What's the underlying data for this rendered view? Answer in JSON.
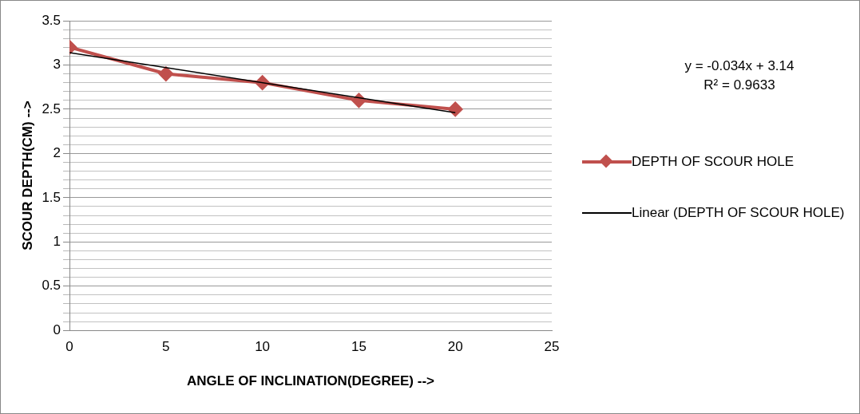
{
  "chart_data": {
    "type": "line",
    "xlabel": "ANGLE OF INCLINATION(DEGREE) -->",
    "ylabel": "SCOUR DEPTH(CM) -->",
    "series": [
      {
        "name": "DEPTH OF SCOUR HOLE",
        "color": "#c0504d",
        "x": [
          0,
          5,
          10,
          15,
          20
        ],
        "values": [
          3.2,
          2.9,
          2.8,
          2.6,
          2.5
        ],
        "marker": "diamond"
      },
      {
        "name": "Linear (DEPTH OF SCOUR HOLE)",
        "color": "#000000",
        "x": [
          0,
          20
        ],
        "values": [
          3.14,
          2.46
        ],
        "marker": "none"
      }
    ],
    "xlim": [
      0,
      25
    ],
    "xticks": [
      0,
      5,
      10,
      15,
      20,
      25
    ],
    "ylim": [
      0,
      3.5
    ],
    "yticks": [
      0,
      {
        "value": 0.1,
        "label": null
      },
      {
        "value": 0.2,
        "label": null
      },
      {
        "value": 0.3,
        "label": null
      },
      {
        "value": 0.4,
        "label": null
      },
      0.5,
      {
        "value": 0.6,
        "label": null
      },
      {
        "value": 0.7,
        "label": null
      },
      {
        "value": 0.8,
        "label": null
      },
      {
        "value": 0.9,
        "label": null
      },
      1,
      {
        "value": 1.1,
        "label": null
      },
      {
        "value": 1.2,
        "label": null
      },
      {
        "value": 1.3,
        "label": null
      },
      {
        "value": 1.4,
        "label": null
      },
      1.5,
      {
        "value": 1.6,
        "label": null
      },
      {
        "value": 1.7,
        "label": null
      },
      {
        "value": 1.8,
        "label": null
      },
      {
        "value": 1.9,
        "label": null
      },
      2,
      {
        "value": 2.1,
        "label": null
      },
      {
        "value": 2.2,
        "label": null
      },
      {
        "value": 2.3,
        "label": null
      },
      {
        "value": 2.4,
        "label": null
      },
      2.5,
      {
        "value": 2.6,
        "label": null
      },
      {
        "value": 2.7,
        "label": null
      },
      {
        "value": 2.8,
        "label": null
      },
      {
        "value": 2.9,
        "label": null
      },
      3,
      {
        "value": 3.1,
        "label": null
      },
      {
        "value": 3.2,
        "label": null
      },
      {
        "value": 3.3,
        "label": null
      },
      {
        "value": 3.4,
        "label": null
      },
      3.5
    ],
    "grid": "y",
    "legend": "right",
    "line_style": "solid",
    "annotations": [
      "y = -0.034x + 3.14",
      "R² = 0.9633"
    ]
  }
}
